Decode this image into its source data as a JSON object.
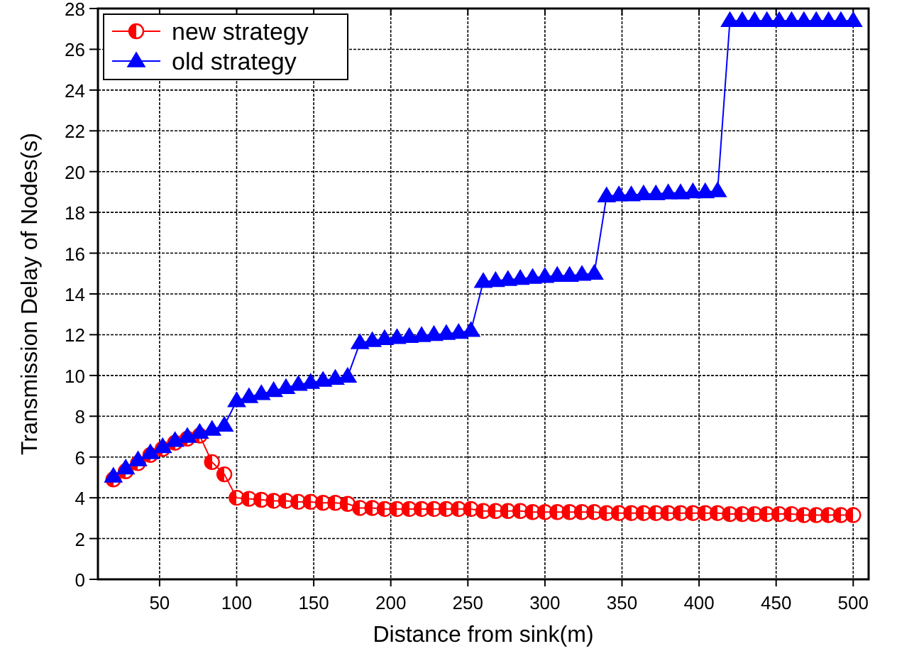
{
  "chart_data": {
    "type": "line",
    "xlabel": "Distance from sink(m)",
    "ylabel": "Transmission Delay of Nodes(s)",
    "x": [
      20,
      28,
      36,
      44,
      52,
      60,
      68,
      76,
      84,
      92,
      100,
      108,
      116,
      124,
      132,
      140,
      148,
      156,
      164,
      172,
      180,
      188,
      196,
      204,
      212,
      220,
      228,
      236,
      244,
      252,
      260,
      268,
      276,
      284,
      292,
      300,
      308,
      316,
      324,
      332,
      340,
      348,
      356,
      364,
      372,
      380,
      388,
      396,
      404,
      412,
      420,
      428,
      436,
      444,
      452,
      460,
      468,
      476,
      484,
      492,
      500
    ],
    "series": [
      {
        "name": "new strategy",
        "color": "#ff0000",
        "marker": "circle",
        "values": [
          4.9,
          5.3,
          5.7,
          6.1,
          6.4,
          6.7,
          6.9,
          7.05,
          5.75,
          5.15,
          4.0,
          3.95,
          3.9,
          3.85,
          3.85,
          3.8,
          3.8,
          3.75,
          3.75,
          3.7,
          3.5,
          3.5,
          3.45,
          3.45,
          3.45,
          3.45,
          3.45,
          3.45,
          3.45,
          3.45,
          3.35,
          3.35,
          3.35,
          3.35,
          3.3,
          3.3,
          3.3,
          3.3,
          3.3,
          3.3,
          3.25,
          3.25,
          3.25,
          3.25,
          3.25,
          3.25,
          3.25,
          3.25,
          3.25,
          3.25,
          3.2,
          3.2,
          3.2,
          3.2,
          3.2,
          3.2,
          3.15,
          3.15,
          3.15,
          3.15,
          3.15
        ]
      },
      {
        "name": "old strategy",
        "color": "#0000ff",
        "marker": "triangle",
        "values": [
          5.05,
          5.45,
          5.85,
          6.2,
          6.5,
          6.8,
          7.0,
          7.2,
          7.35,
          7.55,
          8.75,
          8.95,
          9.1,
          9.25,
          9.4,
          9.55,
          9.65,
          9.75,
          9.85,
          9.95,
          11.6,
          11.7,
          11.8,
          11.85,
          11.9,
          11.95,
          12.0,
          12.05,
          12.1,
          12.2,
          14.6,
          14.65,
          14.7,
          14.75,
          14.8,
          14.85,
          14.9,
          14.9,
          14.95,
          15.0,
          18.8,
          18.85,
          18.85,
          18.9,
          18.9,
          18.95,
          18.95,
          19.0,
          19.0,
          19.05,
          27.4,
          27.4,
          27.4,
          27.4,
          27.4,
          27.4,
          27.4,
          27.4,
          27.4,
          27.4,
          27.4
        ]
      }
    ],
    "xlim": [
      10,
      510
    ],
    "xticks": [
      50,
      100,
      150,
      200,
      250,
      300,
      350,
      400,
      450,
      500
    ],
    "ylim": [
      0,
      28
    ],
    "yticks": [
      0,
      2,
      4,
      6,
      8,
      10,
      12,
      14,
      16,
      18,
      20,
      22,
      24,
      26,
      28
    ],
    "grid": true,
    "legend": "top left",
    "line_style": "solid"
  }
}
